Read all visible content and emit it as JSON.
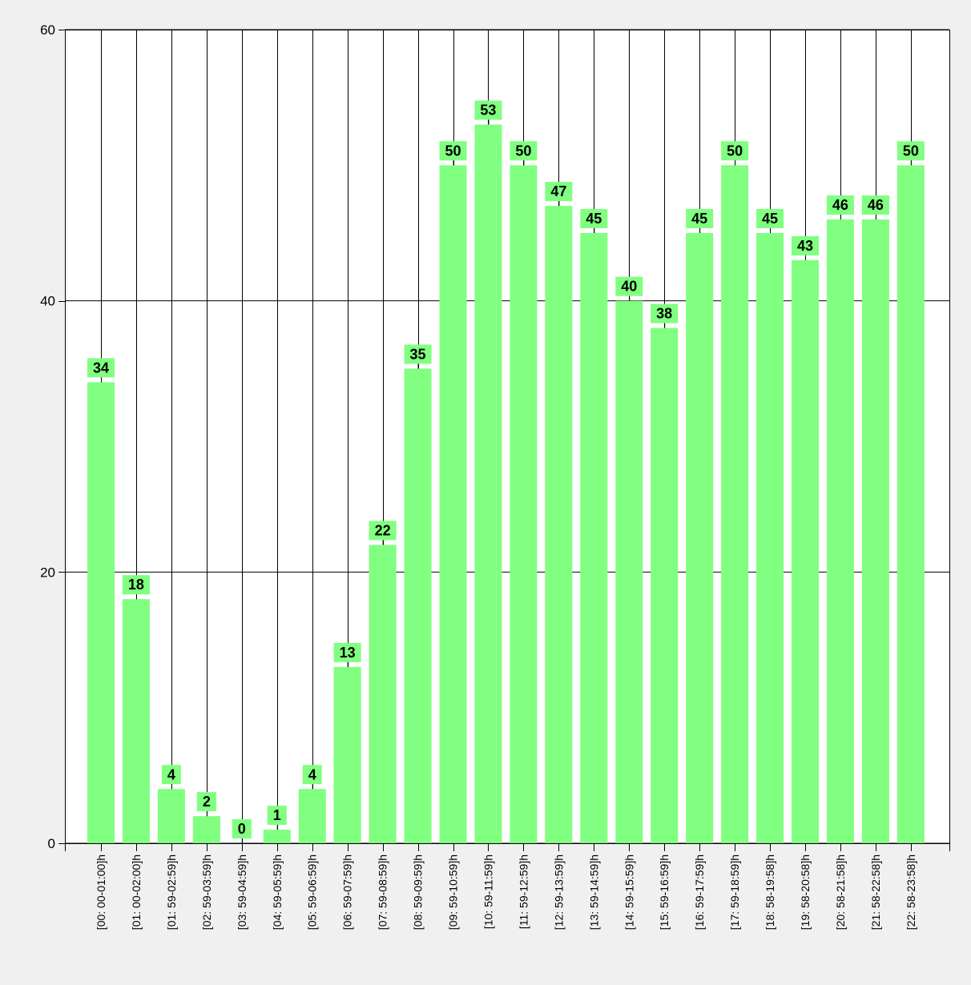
{
  "chart_data": {
    "type": "bar",
    "title": "",
    "xlabel": "",
    "ylabel": "",
    "ylim": [
      0,
      60
    ],
    "yticks": [
      0,
      20,
      40,
      60
    ],
    "grid": true,
    "legend": "none",
    "categories": [
      "[00: 00-01:00]h",
      "[01: 00-02:00]h",
      "[01: 59-02:59]h",
      "[02: 59-03:59]h",
      "[03: 59-04:59]h",
      "[04: 59-05:59]h",
      "[05: 59-06:59]h",
      "[06: 59-07:59]h",
      "[07: 59-08:59]h",
      "[08: 59-09:59]h",
      "[09: 59-10:59]h",
      "[10: 59-11:59]h",
      "[11: 59-12:59]h",
      "[12: 59-13:59]h",
      "[13: 59-14:59]h",
      "[14: 59-15:59]h",
      "[15: 59-16:59]h",
      "[16: 59-17:59]h",
      "[17: 59-18:59]h",
      "[18: 58-19:58]h",
      "[19: 58-20:58]h",
      "[20: 58-21:58]h",
      "[21: 58-22:58]h",
      "[22: 58-23:58]h"
    ],
    "values": [
      34,
      18,
      4,
      2,
      0,
      1,
      4,
      13,
      22,
      35,
      50,
      53,
      50,
      47,
      45,
      40,
      38,
      45,
      50,
      45,
      43,
      46,
      46,
      50
    ],
    "colors": {
      "bar": "#80ff80",
      "label_box": "#80ff80",
      "grid": "#000000",
      "plot_bg": "#ffffff",
      "page_bg": "#f0f0f0"
    }
  }
}
